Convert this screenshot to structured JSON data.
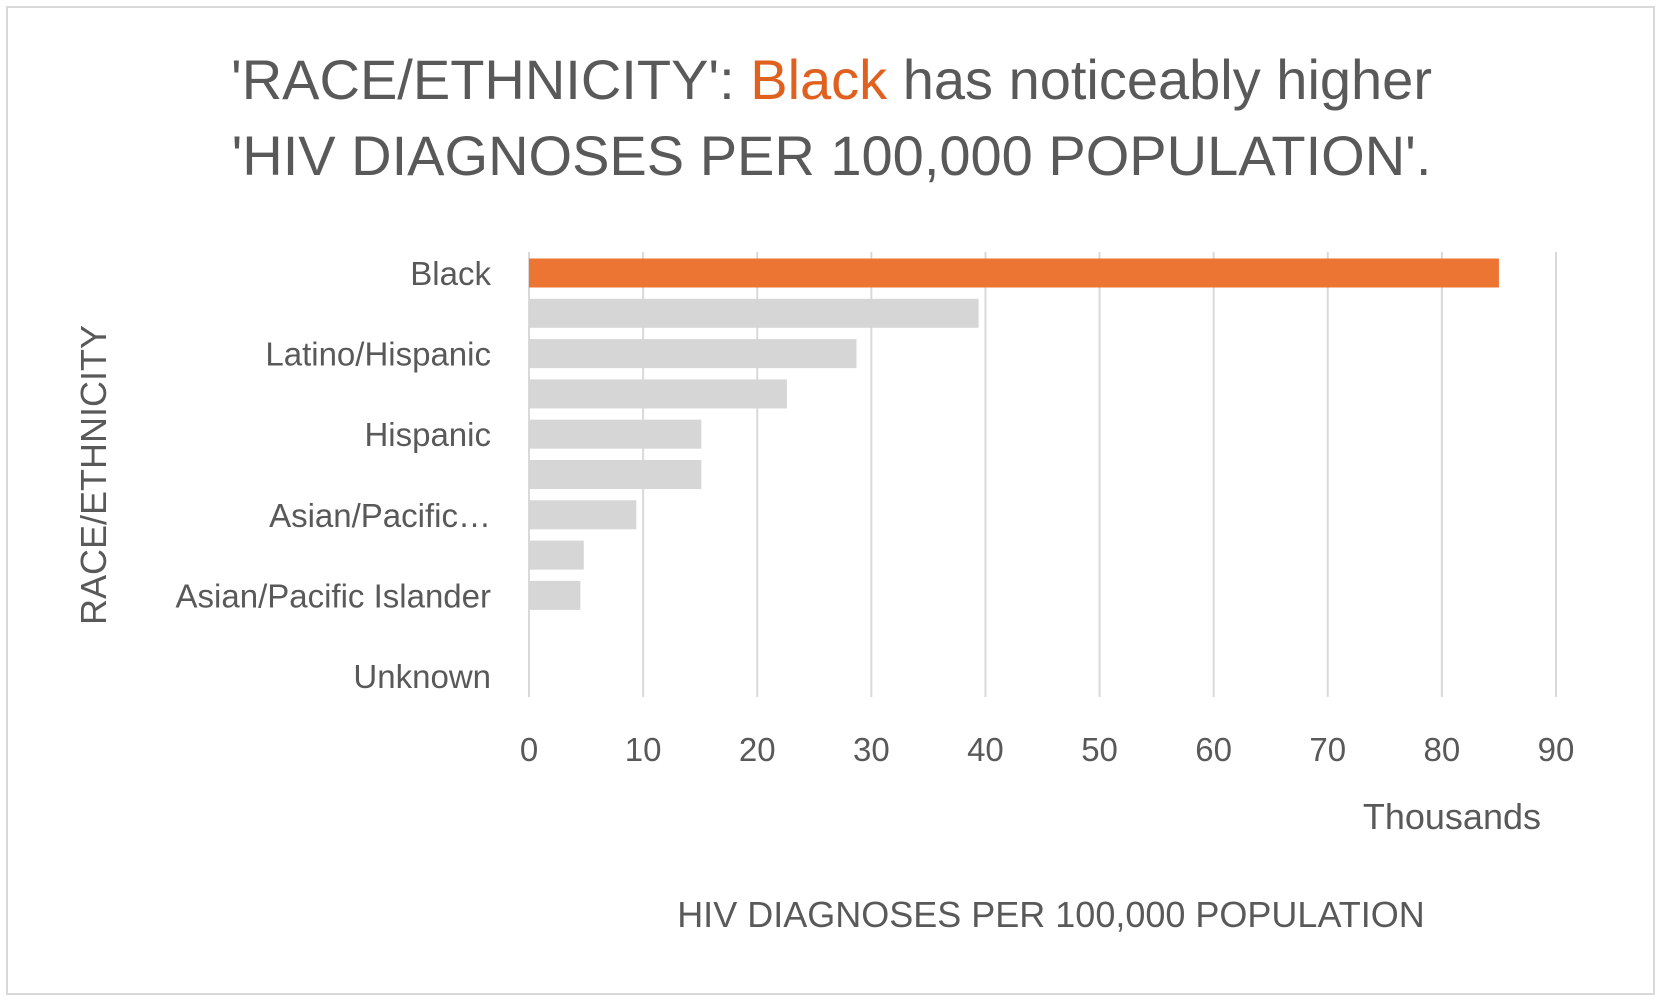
{
  "chart_data": {
    "type": "bar",
    "orientation": "horizontal",
    "title": {
      "prefix": "'RACE/ETHNICITY': ",
      "highlight": "Black",
      "suffix_line1": " has noticeably higher",
      "line2": "'HIV DIAGNOSES PER 100,000 POPULATION'."
    },
    "categories": [
      "Black",
      "",
      "Latino/Hispanic",
      "",
      "Hispanic",
      "",
      "Asian/Pacific…",
      "",
      "Asian/Pacific Islander",
      "",
      "Unknown"
    ],
    "values": [
      85.0,
      39.4,
      28.7,
      22.6,
      15.1,
      15.1,
      9.4,
      4.8,
      4.5,
      0,
      0
    ],
    "highlight_index": 0,
    "colors": {
      "highlight": "#ed7533",
      "other": "#d6d6d6",
      "grid": "#d9d9d9",
      "text": "#595959",
      "title_highlight": "#e0601f"
    },
    "xlim": [
      0,
      90
    ],
    "xticks": [
      "0",
      "10",
      "20",
      "30",
      "40",
      "50",
      "60",
      "70",
      "80",
      "90"
    ],
    "x_units_label": "Thousands",
    "xlabel": "HIV DIAGNOSES PER 100,000 POPULATION",
    "ylabel": "RACE/ETHNICITY",
    "grid": "vertical",
    "legend": "none"
  }
}
